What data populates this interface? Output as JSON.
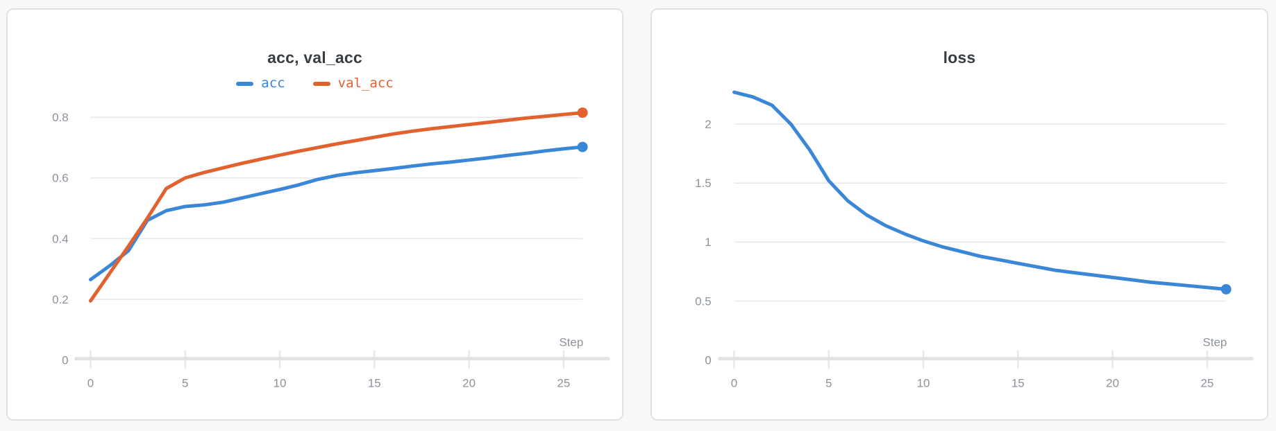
{
  "page": {
    "background_color": "#f8f8f8",
    "card_background": "#ffffff",
    "card_border_color": "#e2e2e2"
  },
  "colors": {
    "title_text": "#383d43",
    "axis_text": "#8c929a",
    "gridline": "#e9e9e9",
    "axis_baseline": "#e2e2e2",
    "axis_tick": "#e7e7e7",
    "series_blue": "#3a87d7",
    "series_orange": "#e1622f"
  },
  "chart_data": [
    {
      "type": "line",
      "title": "acc, val_acc",
      "xlabel": "Step",
      "grid": "horizontal",
      "legend_position": "top-center",
      "xlim": [
        0,
        26
      ],
      "ylim": [
        0,
        0.88
      ],
      "x": [
        0,
        1,
        2,
        3,
        4,
        5,
        6,
        7,
        8,
        9,
        10,
        11,
        12,
        13,
        14,
        15,
        16,
        17,
        18,
        19,
        20,
        21,
        22,
        23,
        24,
        25,
        26
      ],
      "xticks": [
        0,
        5,
        10,
        15,
        20,
        25
      ],
      "xtick_labels": [
        "0",
        "5",
        "10",
        "15",
        "20",
        "25"
      ],
      "yticks": [
        0,
        0.2,
        0.4,
        0.6,
        0.8
      ],
      "ytick_labels": [
        "0",
        "0.2",
        "0.4",
        "0.6",
        "0.8"
      ],
      "series": [
        {
          "name": "acc",
          "color": "#3a87d7",
          "endpoint_marker": true,
          "values": [
            0.265,
            0.31,
            0.36,
            0.46,
            0.492,
            0.506,
            0.511,
            0.52,
            0.534,
            0.548,
            0.562,
            0.577,
            0.595,
            0.608,
            0.617,
            0.624,
            0.631,
            0.639,
            0.646,
            0.652,
            0.659,
            0.666,
            0.674,
            0.681,
            0.689,
            0.696,
            0.702
          ]
        },
        {
          "name": "val_acc",
          "color": "#e1622f",
          "endpoint_marker": true,
          "values": [
            0.195,
            0.285,
            0.375,
            0.467,
            0.565,
            0.6,
            0.618,
            0.633,
            0.648,
            0.662,
            0.675,
            0.688,
            0.7,
            0.712,
            0.723,
            0.734,
            0.745,
            0.754,
            0.762,
            0.769,
            0.776,
            0.783,
            0.79,
            0.797,
            0.803,
            0.809,
            0.815
          ]
        }
      ]
    },
    {
      "type": "line",
      "title": "loss",
      "xlabel": "Step",
      "grid": "horizontal",
      "legend_position": "none",
      "xlim": [
        0,
        26
      ],
      "ylim": [
        0,
        2.38
      ],
      "x": [
        0,
        1,
        2,
        3,
        4,
        5,
        6,
        7,
        8,
        9,
        10,
        11,
        12,
        13,
        14,
        15,
        16,
        17,
        18,
        19,
        20,
        21,
        22,
        23,
        24,
        25,
        26
      ],
      "xticks": [
        0,
        5,
        10,
        15,
        20,
        25
      ],
      "xtick_labels": [
        "0",
        "5",
        "10",
        "15",
        "20",
        "25"
      ],
      "yticks": [
        0,
        0.5,
        1,
        1.5,
        2
      ],
      "ytick_labels": [
        "0",
        "0.5",
        "1",
        "1.5",
        "2"
      ],
      "series": [
        {
          "name": "loss",
          "color": "#3a87d7",
          "endpoint_marker": true,
          "values": [
            2.27,
            2.23,
            2.16,
            2.0,
            1.78,
            1.52,
            1.35,
            1.23,
            1.14,
            1.07,
            1.01,
            0.96,
            0.92,
            0.88,
            0.85,
            0.82,
            0.79,
            0.76,
            0.74,
            0.72,
            0.7,
            0.68,
            0.66,
            0.645,
            0.63,
            0.615,
            0.6
          ]
        }
      ]
    }
  ]
}
